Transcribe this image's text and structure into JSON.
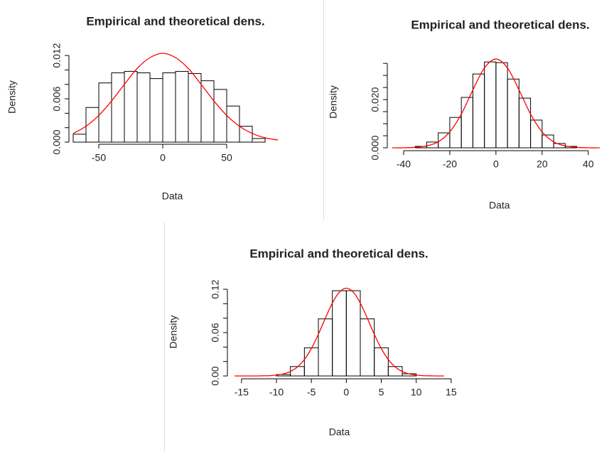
{
  "chart_data": [
    {
      "type": "histogram",
      "title": "Empirical and theoretical dens.",
      "xlabel": "Data",
      "ylabel": "Density",
      "bins": [
        -70,
        -60,
        -50,
        -40,
        -30,
        -20,
        -10,
        0,
        10,
        20,
        30,
        40,
        50,
        60,
        70,
        80
      ],
      "values": [
        0.0011,
        0.0048,
        0.0082,
        0.0096,
        0.0098,
        0.0096,
        0.0088,
        0.0096,
        0.0098,
        0.0095,
        0.0085,
        0.0073,
        0.005,
        0.0022,
        0.0005
      ],
      "color": "#000000",
      "curve": {
        "color": "#ff0000",
        "x": [
          -70,
          -60,
          -50,
          -40,
          -30,
          -20,
          -10,
          0,
          10,
          20,
          30,
          40,
          50,
          60,
          70,
          80,
          90
        ],
        "values": [
          0.0012,
          0.0022,
          0.0037,
          0.0057,
          0.008,
          0.0102,
          0.0117,
          0.0123,
          0.0117,
          0.0102,
          0.008,
          0.0057,
          0.0037,
          0.0022,
          0.0012,
          0.0006,
          0.0003
        ]
      },
      "xlim": [
        -75,
        90
      ],
      "ylim": [
        0,
        0.0125
      ],
      "xticks": [
        -50,
        0,
        50
      ],
      "yticks": [
        {
          "value": 0,
          "label": "0.000"
        },
        {
          "value": 0.002,
          "label": null
        },
        {
          "value": 0.004,
          "label": null
        },
        {
          "value": 0.006,
          "label": "0.006"
        },
        {
          "value": 0.008,
          "label": null
        },
        {
          "value": 0.01,
          "label": null
        },
        {
          "value": 0.012,
          "label": "0.012"
        }
      ]
    },
    {
      "type": "histogram",
      "title": "Empirical and theoretical dens.",
      "xlabel": "Data",
      "ylabel": "Density",
      "bins": [
        -35,
        -30,
        -25,
        -20,
        -15,
        -10,
        -5,
        0,
        5,
        10,
        15,
        20,
        25,
        30,
        35
      ],
      "values": [
        0.0006,
        0.0024,
        0.0062,
        0.0126,
        0.0209,
        0.0306,
        0.0356,
        0.0353,
        0.0285,
        0.0206,
        0.0115,
        0.0053,
        0.0018,
        0.0006
      ],
      "color": "#000000",
      "curve": {
        "color": "#ff0000",
        "x": [
          -45,
          -40,
          -35,
          -30,
          -25,
          -20,
          -15,
          -10,
          -5,
          0,
          5,
          10,
          15,
          20,
          25,
          30,
          35,
          40,
          45
        ],
        "values": [
          0,
          0,
          0.0002,
          0.0008,
          0.0025,
          0.0066,
          0.014,
          0.024,
          0.0331,
          0.0368,
          0.0331,
          0.024,
          0.014,
          0.0066,
          0.0025,
          0.0008,
          0.0002,
          0,
          0
        ]
      },
      "xlim": [
        -46,
        49
      ],
      "ylim": [
        0,
        0.038
      ],
      "xticks": [
        -40,
        -20,
        0,
        20,
        40
      ],
      "yticks": [
        {
          "value": 0,
          "label": "0.000"
        },
        {
          "value": 0.005,
          "label": null
        },
        {
          "value": 0.01,
          "label": null
        },
        {
          "value": 0.015,
          "label": null
        },
        {
          "value": 0.02,
          "label": "0.020"
        },
        {
          "value": 0.025,
          "label": null
        },
        {
          "value": 0.03,
          "label": null
        },
        {
          "value": 0.035,
          "label": null
        }
      ]
    },
    {
      "type": "histogram",
      "title": "Empirical and theoretical dens.",
      "xlabel": "Data",
      "ylabel": "Density",
      "bins": [
        -10,
        -8,
        -6,
        -4,
        -2,
        0,
        2,
        4,
        6,
        8,
        10
      ],
      "values": [
        0.002,
        0.013,
        0.039,
        0.079,
        0.118,
        0.118,
        0.079,
        0.039,
        0.013,
        0.003
      ],
      "color": "#000000",
      "curve": {
        "color": "#ff0000",
        "x": [
          -16,
          -14,
          -13,
          -12,
          -11,
          -10,
          -9,
          -8,
          -7,
          -6,
          -5,
          -4,
          -3,
          -2,
          -1,
          0,
          1,
          2,
          3,
          4,
          5,
          6,
          7,
          8,
          9,
          10,
          11,
          12,
          13,
          14
        ],
        "values": [
          0,
          0,
          0,
          0.0002,
          0.0004,
          0.0012,
          0.0028,
          0.0062,
          0.0124,
          0.0228,
          0.038,
          0.0577,
          0.08,
          0.1009,
          0.116,
          0.1215,
          0.116,
          0.1009,
          0.08,
          0.0577,
          0.038,
          0.0228,
          0.0124,
          0.0062,
          0.0028,
          0.0012,
          0.0004,
          0.0002,
          0,
          0
        ]
      },
      "xlim": [
        -16,
        14
      ],
      "ylim": [
        0,
        0.122
      ],
      "xticks": [
        -15,
        -10,
        -5,
        0,
        5,
        10,
        15
      ],
      "yticks": [
        {
          "value": 0,
          "label": "0.00"
        },
        {
          "value": 0.02,
          "label": null
        },
        {
          "value": 0.04,
          "label": null
        },
        {
          "value": 0.06,
          "label": "0.06"
        },
        {
          "value": 0.08,
          "label": null
        },
        {
          "value": 0.1,
          "label": null
        },
        {
          "value": 0.12,
          "label": "0.12"
        }
      ]
    }
  ]
}
